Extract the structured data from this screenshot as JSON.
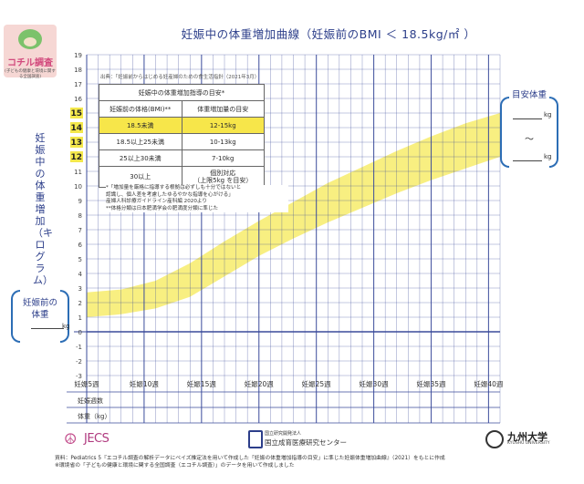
{
  "logo": {
    "title": "コチル調査",
    "subtitle": "(子どもの健康と環境に関する全国調査)"
  },
  "title": "妊娠中の体重増加曲線（妊娠前のBMI ＜ 18.5kg/㎡ ）",
  "ylabel": "妊娠中の体重増加（キログラム）",
  "pre_pregnancy": {
    "label_line1": "妊娠前の",
    "label_line2": "体重",
    "unit": "kg"
  },
  "target": {
    "label": "目安体重",
    "unit_top": "kg",
    "tilde": "〜",
    "unit_bottom": "kg"
  },
  "source_top": "出典：「妊娠前からはじめる妊産婦のための食生活指針（2021年3月）",
  "table": {
    "caption": "妊娠中の体重増加指導の目安*",
    "col1": "妊娠前の体格(BMI)**",
    "col2": "体重増加量の目安",
    "rows": [
      {
        "bmi": "18.5未満",
        "gain": "12-15kg",
        "highlight": true
      },
      {
        "bmi": "18.5以上25未満",
        "gain": "10-13kg",
        "highlight": false
      },
      {
        "bmi": "25以上30未満",
        "gain": "7-10kg",
        "highlight": false
      },
      {
        "bmi": "30以上",
        "gain": "個別対応",
        "gain_sub": "（上限5kg を目安）",
        "highlight": false
      }
    ]
  },
  "notes": [
    "*「増加量を厳格に指導する根拠は必ずしも十分ではないと",
    "認識し、個人差を考慮したゆるやかな指導を心がける」",
    "産婦人科診療ガイドライン産科編 2020より",
    "**体格分類は日本肥満学会の肥満度分類に準じた"
  ],
  "bottom_rows": {
    "visits": "妊娠週数",
    "weight": "体重（kg）"
  },
  "logos": {
    "jecs": "JECS",
    "ncchd_small": "国立研究開発法人",
    "ncchd_main": "国立成育医療研究センター",
    "kyushu": "九州大学",
    "kyushu_en": "KYUSHU UNIVERSITY"
  },
  "footer": [
    "資料：Pediatrics 5『エコチル調査の解析データにベイズ推定法を用いて作成した「妊娠の体重増加指導の目安」に準じた妊娠体重増加曲線』（2021）をもとに作成",
    "※環境省の「子どもの健康と環境に関する全国調査（エコチル調査）」のデータを用いて作成しました"
  ],
  "colors": {
    "grid": "#3a4a9a",
    "band": "#f7ec6b",
    "highlight_label": "#f4e84c",
    "accent": "#2c3e8a"
  },
  "chart_data": {
    "type": "area",
    "x_ticks": [
      "妊娠5週",
      "妊娠10週",
      "妊娠15週",
      "妊娠20週",
      "妊娠25週",
      "妊娠30週",
      "妊娠35週",
      "妊娠40週"
    ],
    "x_tick_values": [
      5,
      10,
      15,
      20,
      25,
      30,
      35,
      40
    ],
    "xlim": [
      5,
      41
    ],
    "ylim": [
      -3,
      19
    ],
    "y_ticks": [
      -3,
      -2,
      -1,
      0,
      1,
      2,
      3,
      4,
      5,
      6,
      7,
      8,
      9,
      10,
      11,
      12,
      13,
      14,
      15,
      16,
      17,
      18,
      19
    ],
    "y_highlight_ticks": [
      12,
      13,
      14,
      15
    ],
    "band": {
      "x": [
        5,
        8,
        11,
        14,
        17,
        20,
        23,
        26,
        29,
        32,
        35,
        38,
        41
      ],
      "lower": [
        1.0,
        1.2,
        1.6,
        2.4,
        3.8,
        5.2,
        6.4,
        7.5,
        8.5,
        9.5,
        10.4,
        11.2,
        12.0
      ],
      "upper": [
        2.7,
        2.9,
        3.5,
        4.7,
        6.2,
        7.6,
        8.9,
        10.2,
        11.3,
        12.4,
        13.4,
        14.3,
        15.0
      ]
    }
  }
}
